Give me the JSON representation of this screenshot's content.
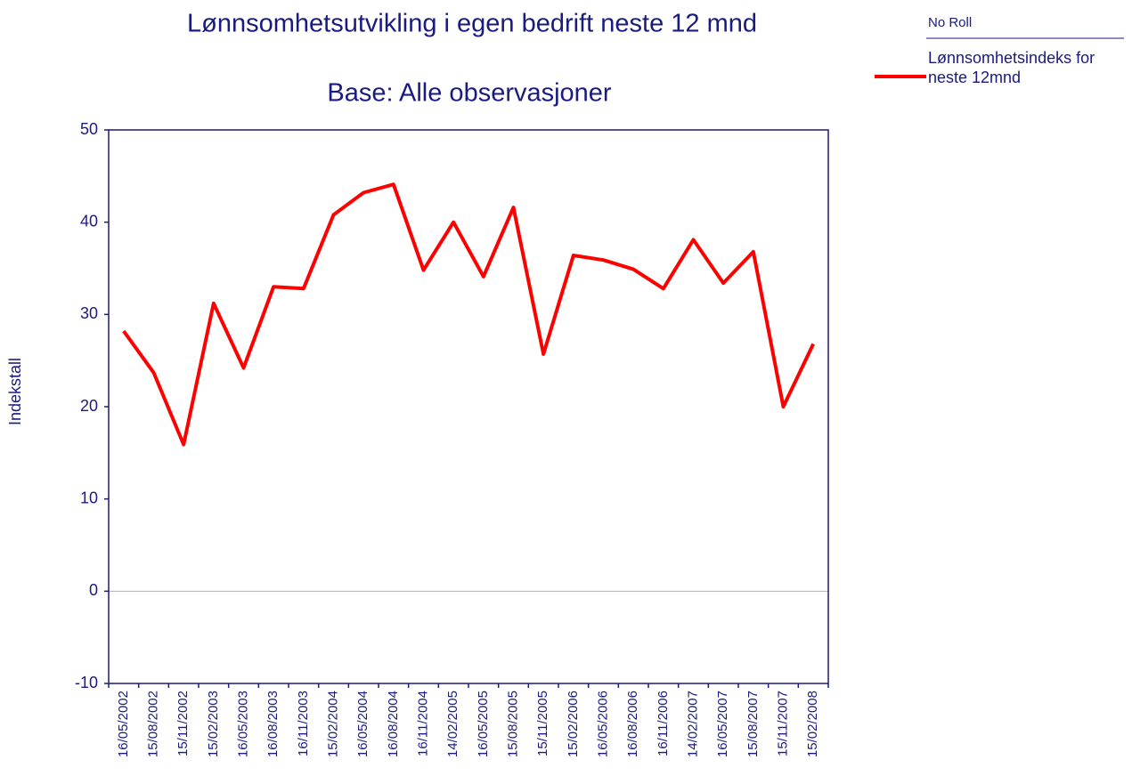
{
  "chart_data": {
    "type": "line",
    "title": "Lønnsomhetsutvikling i egen bedrift neste 12 mnd",
    "subtitle": "Base: Alle observasjoner",
    "y_label": "Indekstall",
    "legend_title": "No Roll",
    "categories": [
      "16/05/2002",
      "15/08/2002",
      "15/11/2002",
      "15/02/2003",
      "16/05/2003",
      "16/08/2003",
      "16/11/2003",
      "15/02/2004",
      "16/05/2004",
      "16/08/2004",
      "16/11/2004",
      "14/02/2005",
      "16/05/2005",
      "15/08/2005",
      "15/11/2005",
      "15/02/2006",
      "16/05/2006",
      "16/08/2006",
      "16/11/2006",
      "14/02/2007",
      "16/05/2007",
      "15/08/2007",
      "15/11/2007",
      "15/02/2008"
    ],
    "series": [
      {
        "name": "Lønnsomhetsindeks for neste 12mnd",
        "color": "#ff0000",
        "values": [
          28.2,
          23.7,
          15.9,
          31.2,
          24.2,
          33.0,
          32.8,
          40.8,
          43.2,
          44.1,
          34.8,
          40.0,
          34.1,
          41.6,
          25.7,
          36.4,
          35.9,
          34.9,
          32.8,
          38.1,
          33.4,
          36.8,
          20.0,
          26.8
        ]
      }
    ],
    "ylim": [
      -10,
      50
    ],
    "yticks": [
      -10,
      0,
      10,
      20,
      30,
      40,
      50
    ]
  }
}
